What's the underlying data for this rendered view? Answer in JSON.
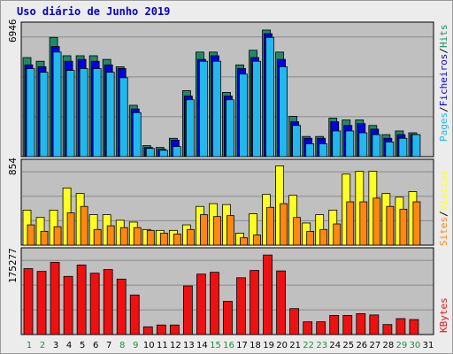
{
  "chart_data": {
    "type": "bar",
    "title": "Uso diário de Junho 2019",
    "categories": [
      "1",
      "2",
      "3",
      "4",
      "5",
      "6",
      "7",
      "8",
      "9",
      "10",
      "11",
      "12",
      "13",
      "14",
      "15",
      "16",
      "17",
      "18",
      "19",
      "20",
      "21",
      "22",
      "23",
      "24",
      "25",
      "26",
      "27",
      "28",
      "29",
      "30",
      "31"
    ],
    "weekend_days": [
      "1",
      "2",
      "8",
      "9",
      "15",
      "16",
      "22",
      "23",
      "29",
      "30"
    ],
    "colors": {
      "hits": "#1f8a66",
      "files": "#0000e0",
      "pages": "#22b8ee",
      "visits": "#ffff22",
      "sites": "#ff8811",
      "kbytes": "#ee1111",
      "weekday_label": "#000000",
      "weekend_label": "#1e8e3e"
    },
    "panels": [
      {
        "name": "top",
        "max_label": "6946",
        "ymax": 6946,
        "series": [
          {
            "name": "Hits",
            "values": [
              5400,
              5200,
              6500,
              5500,
              5500,
              5500,
              5300,
              4900,
              2800,
              600,
              500,
              1000,
              3600,
              5700,
              5700,
              3500,
              5000,
              5800,
              6900,
              5700,
              2200,
              1100,
              1100,
              2100,
              2000,
              2000,
              1700,
              1200,
              1400,
              1300,
              0
            ]
          },
          {
            "name": "Ficheiros",
            "values": [
              5000,
              4900,
              6000,
              5200,
              5300,
              5200,
              5000,
              4800,
              2600,
              500,
              400,
              900,
              3300,
              5300,
              5500,
              3300,
              4800,
              5400,
              6700,
              5300,
              1900,
              1000,
              1000,
              1900,
              1700,
              1800,
              1500,
              1000,
              1200,
              1200,
              0
            ]
          },
          {
            "name": "Pages",
            "values": [
              4800,
              4600,
              5700,
              4700,
              4800,
              4800,
              4600,
              4300,
              2400,
              450,
              350,
              550,
              3100,
              5200,
              5200,
              3100,
              4500,
              5200,
              6500,
              4900,
              1700,
              700,
              700,
              1400,
              1400,
              1300,
              1200,
              800,
              1000,
              1200,
              0
            ]
          }
        ]
      },
      {
        "name": "middle",
        "max_label": "854",
        "ymax": 854,
        "series": [
          {
            "name": "Visitas",
            "values": [
              380,
              300,
              380,
              620,
              560,
              330,
              330,
              270,
              250,
              170,
              160,
              160,
              220,
              420,
              450,
              440,
              130,
              340,
              550,
              860,
              540,
              240,
              330,
              380,
              770,
              800,
              800,
              560,
              520,
              580,
              0
            ]
          },
          {
            "name": "Sites",
            "values": [
              220,
              150,
              200,
              350,
              420,
              170,
              210,
              190,
              190,
              160,
              130,
              120,
              170,
              330,
              310,
              320,
              80,
              110,
              410,
              450,
              300,
              150,
              170,
              230,
              470,
              470,
              510,
              420,
              390,
              470,
              0
            ]
          }
        ]
      },
      {
        "name": "bottom",
        "max_label": "175277",
        "ymax": 175277,
        "series": [
          {
            "name": "KBytes",
            "values": [
              145000,
              139000,
              159000,
              128000,
              153000,
              135000,
              143000,
              122000,
              87000,
              17000,
              21000,
              21000,
              107000,
              133000,
              137000,
              73000,
              125000,
              141000,
              175000,
              140000,
              57000,
              28000,
              28000,
              42000,
              42000,
              46000,
              43000,
              22000,
              35000,
              33000,
              0
            ]
          }
        ]
      }
    ],
    "right_labels": {
      "top": [
        "Pages",
        "/",
        "Ficheiros",
        "/",
        "Hits"
      ],
      "middle": [
        "Sites",
        "/",
        "Visitas"
      ],
      "bottom": [
        "KBytes"
      ]
    }
  }
}
